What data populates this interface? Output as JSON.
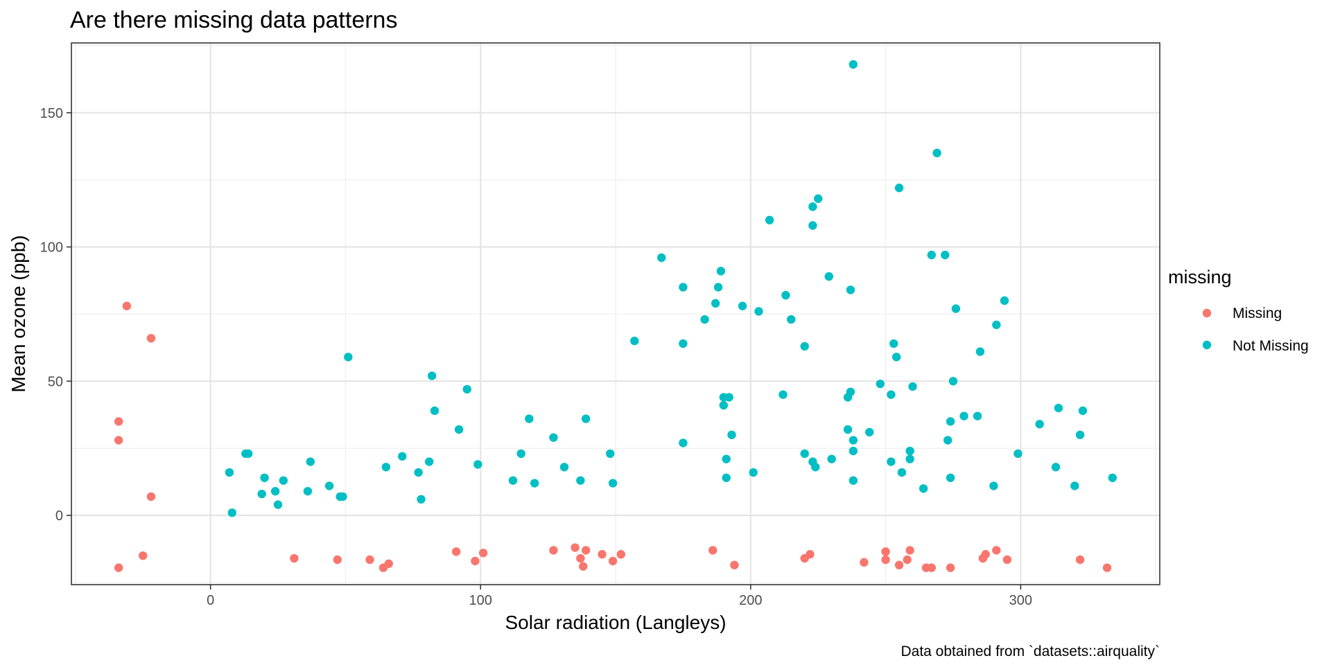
{
  "chart_data": {
    "type": "scatter",
    "title": "Are there missing data patterns",
    "xlabel": "Solar radiation (Langleys)",
    "ylabel": "Mean ozone (ppb)",
    "caption": "Data obtained from `datasets::airquality`",
    "xlim": [
      -51.5,
      351.5
    ],
    "ylim": [
      -25.8,
      176
    ],
    "x_ticks": [
      0,
      100,
      200,
      300
    ],
    "x_tick_labels": [
      "0",
      "100",
      "200",
      "300"
    ],
    "y_ticks": [
      0,
      50,
      100,
      150
    ],
    "y_tick_labels": [
      "0",
      "50",
      "100",
      "150"
    ],
    "grid": true,
    "legend": {
      "title": "missing",
      "position": "right"
    },
    "series": [
      {
        "name": "Missing",
        "color": "#F8766D",
        "points": [
          [
            -34,
            35
          ],
          [
            -34,
            28
          ],
          [
            -34,
            -19.5
          ],
          [
            -31,
            78
          ],
          [
            -25,
            -15
          ],
          [
            -22,
            66
          ],
          [
            -22,
            7
          ],
          [
            31,
            -16
          ],
          [
            47,
            -16.5
          ],
          [
            59,
            -16.5
          ],
          [
            64,
            -19.5
          ],
          [
            66,
            -18
          ],
          [
            91,
            -13.5
          ],
          [
            98,
            -17
          ],
          [
            101,
            -14
          ],
          [
            127,
            -13
          ],
          [
            135,
            -12
          ],
          [
            137,
            -16
          ],
          [
            138,
            -19
          ],
          [
            139,
            -13
          ],
          [
            145,
            -14.5
          ],
          [
            149,
            -17
          ],
          [
            152,
            -14.5
          ],
          [
            186,
            -13
          ],
          [
            194,
            -18.5
          ],
          [
            220,
            -16
          ],
          [
            222,
            -14.5
          ],
          [
            242,
            -17.5
          ],
          [
            250,
            -13.5
          ],
          [
            250,
            -16.5
          ],
          [
            255,
            -18.5
          ],
          [
            258,
            -16.5
          ],
          [
            259,
            -13
          ],
          [
            265,
            -19.5
          ],
          [
            267,
            -19.5
          ],
          [
            274,
            -19.5
          ],
          [
            286,
            -16
          ],
          [
            287,
            -14.5
          ],
          [
            291,
            -13
          ],
          [
            295,
            -16.5
          ],
          [
            322,
            -16.5
          ],
          [
            332,
            -19.5
          ]
        ]
      },
      {
        "name": "Not Missing",
        "color": "#00BFC4",
        "points": [
          [
            7,
            16
          ],
          [
            8,
            1
          ],
          [
            13,
            23
          ],
          [
            14,
            23
          ],
          [
            19,
            8
          ],
          [
            20,
            14
          ],
          [
            24,
            9
          ],
          [
            25,
            4
          ],
          [
            27,
            13
          ],
          [
            36,
            9
          ],
          [
            37,
            20
          ],
          [
            44,
            11
          ],
          [
            48,
            7
          ],
          [
            49,
            7
          ],
          [
            51,
            59
          ],
          [
            65,
            18
          ],
          [
            71,
            22
          ],
          [
            77,
            16
          ],
          [
            78,
            6
          ],
          [
            81,
            20
          ],
          [
            82,
            52
          ],
          [
            83,
            39
          ],
          [
            92,
            32
          ],
          [
            95,
            47
          ],
          [
            99,
            19
          ],
          [
            112,
            13
          ],
          [
            115,
            23
          ],
          [
            118,
            36
          ],
          [
            120,
            12
          ],
          [
            127,
            29
          ],
          [
            131,
            18
          ],
          [
            137,
            13
          ],
          [
            139,
            36
          ],
          [
            148,
            23
          ],
          [
            149,
            12
          ],
          [
            157,
            65
          ],
          [
            167,
            96
          ],
          [
            175,
            85
          ],
          [
            175,
            64
          ],
          [
            175,
            27
          ],
          [
            183,
            73
          ],
          [
            187,
            79
          ],
          [
            188,
            85
          ],
          [
            189,
            91
          ],
          [
            190,
            44
          ],
          [
            190,
            41
          ],
          [
            191,
            14
          ],
          [
            191,
            21
          ],
          [
            192,
            44
          ],
          [
            193,
            30
          ],
          [
            197,
            78
          ],
          [
            201,
            16
          ],
          [
            203,
            76
          ],
          [
            207,
            110
          ],
          [
            212,
            45
          ],
          [
            213,
            82
          ],
          [
            215,
            73
          ],
          [
            220,
            63
          ],
          [
            220,
            23
          ],
          [
            223,
            115
          ],
          [
            223,
            108
          ],
          [
            223,
            20
          ],
          [
            224,
            18
          ],
          [
            225,
            118
          ],
          [
            229,
            89
          ],
          [
            230,
            21
          ],
          [
            236,
            44
          ],
          [
            236,
            32
          ],
          [
            237,
            84
          ],
          [
            237,
            46
          ],
          [
            238,
            28
          ],
          [
            238,
            24
          ],
          [
            238,
            13
          ],
          [
            238,
            168
          ],
          [
            244,
            31
          ],
          [
            248,
            49
          ],
          [
            252,
            45
          ],
          [
            252,
            20
          ],
          [
            253,
            64
          ],
          [
            254,
            59
          ],
          [
            255,
            122
          ],
          [
            256,
            16
          ],
          [
            259,
            24
          ],
          [
            259,
            21
          ],
          [
            260,
            48
          ],
          [
            264,
            10
          ],
          [
            267,
            97
          ],
          [
            269,
            135
          ],
          [
            272,
            97
          ],
          [
            273,
            28
          ],
          [
            274,
            35
          ],
          [
            274,
            14
          ],
          [
            275,
            50
          ],
          [
            276,
            77
          ],
          [
            279,
            37
          ],
          [
            284,
            37
          ],
          [
            285,
            61
          ],
          [
            290,
            11
          ],
          [
            291,
            71
          ],
          [
            294,
            80
          ],
          [
            299,
            23
          ],
          [
            307,
            34
          ],
          [
            313,
            18
          ],
          [
            314,
            40
          ],
          [
            320,
            11
          ],
          [
            322,
            30
          ],
          [
            323,
            39
          ],
          [
            334,
            14
          ]
        ]
      }
    ]
  }
}
